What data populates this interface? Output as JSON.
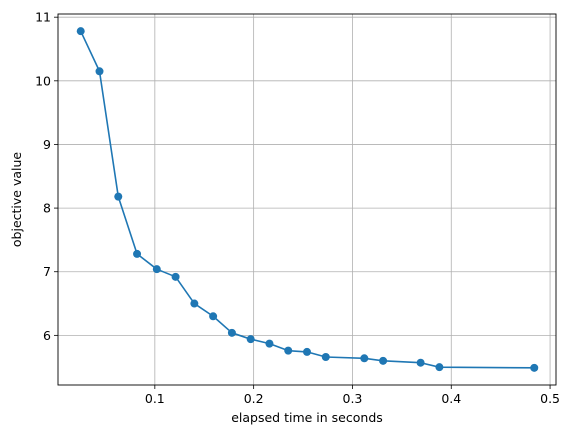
{
  "chart_data": {
    "type": "line",
    "markers": true,
    "grid": true,
    "xlabel": "elapsed time in seconds",
    "ylabel": "objective value",
    "xlim": [
      0.002,
      0.506
    ],
    "ylim": [
      5.22,
      11.05
    ],
    "xticks": [
      0.1,
      0.2,
      0.3,
      0.4,
      0.5
    ],
    "xtick_labels": [
      "0.1",
      "0.2",
      "0.3",
      "0.4",
      "0.5"
    ],
    "yticks": [
      6,
      7,
      8,
      9,
      10,
      11
    ],
    "ytick_labels": [
      "6",
      "7",
      "8",
      "9",
      "10",
      "11"
    ],
    "series": [
      {
        "color": "#1f77b4",
        "x": [
          0.025,
          0.044,
          0.063,
          0.082,
          0.102,
          0.121,
          0.14,
          0.159,
          0.178,
          0.197,
          0.216,
          0.235,
          0.254,
          0.273,
          0.312,
          0.331,
          0.369,
          0.388,
          0.484
        ],
        "y": [
          10.78,
          10.15,
          8.18,
          7.28,
          7.04,
          6.92,
          6.5,
          6.3,
          6.04,
          5.94,
          5.87,
          5.76,
          5.74,
          5.66,
          5.64,
          5.6,
          5.57,
          5.5,
          5.49
        ]
      }
    ]
  }
}
